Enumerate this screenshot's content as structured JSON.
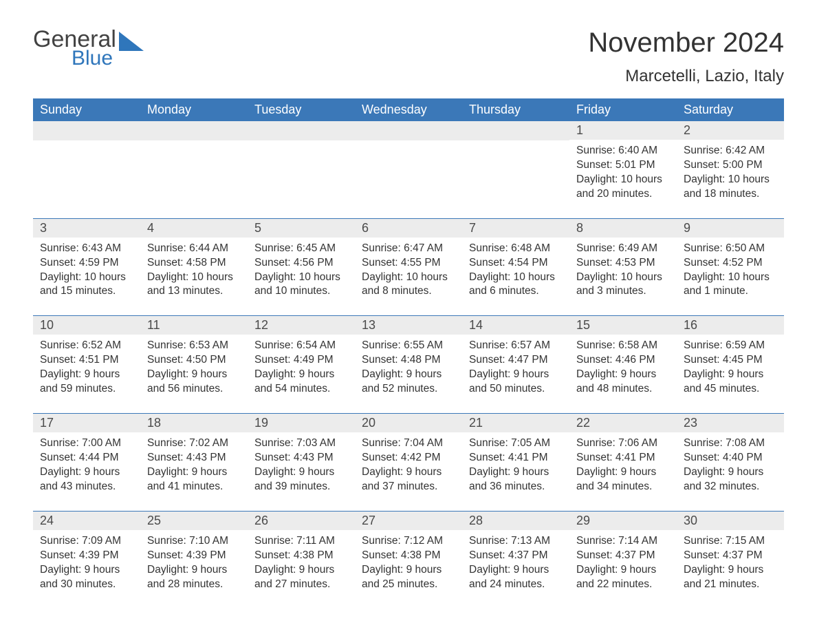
{
  "brand": {
    "word1": "General",
    "word2": "Blue",
    "accent_color": "#2f76bb",
    "text_color": "#424242"
  },
  "title": "November 2024",
  "location": "Marcetelli, Lazio, Italy",
  "colors": {
    "header_bg": "#3b78b8",
    "header_text": "#ffffff",
    "daynum_bg": "#ececec",
    "daynum_text": "#4a4a4a",
    "body_text": "#333333",
    "rule": "#3b78b8",
    "page_bg": "#ffffff"
  },
  "typography": {
    "title_fontsize": 40,
    "location_fontsize": 24,
    "weekday_fontsize": 18,
    "daynum_fontsize": 18,
    "body_fontsize": 15.5
  },
  "weekdays": [
    "Sunday",
    "Monday",
    "Tuesday",
    "Wednesday",
    "Thursday",
    "Friday",
    "Saturday"
  ],
  "weeks": [
    [
      null,
      null,
      null,
      null,
      null,
      {
        "n": "1",
        "sunrise": "6:40 AM",
        "sunset": "5:01 PM",
        "daylight": "10 hours and 20 minutes."
      },
      {
        "n": "2",
        "sunrise": "6:42 AM",
        "sunset": "5:00 PM",
        "daylight": "10 hours and 18 minutes."
      }
    ],
    [
      {
        "n": "3",
        "sunrise": "6:43 AM",
        "sunset": "4:59 PM",
        "daylight": "10 hours and 15 minutes."
      },
      {
        "n": "4",
        "sunrise": "6:44 AM",
        "sunset": "4:58 PM",
        "daylight": "10 hours and 13 minutes."
      },
      {
        "n": "5",
        "sunrise": "6:45 AM",
        "sunset": "4:56 PM",
        "daylight": "10 hours and 10 minutes."
      },
      {
        "n": "6",
        "sunrise": "6:47 AM",
        "sunset": "4:55 PM",
        "daylight": "10 hours and 8 minutes."
      },
      {
        "n": "7",
        "sunrise": "6:48 AM",
        "sunset": "4:54 PM",
        "daylight": "10 hours and 6 minutes."
      },
      {
        "n": "8",
        "sunrise": "6:49 AM",
        "sunset": "4:53 PM",
        "daylight": "10 hours and 3 minutes."
      },
      {
        "n": "9",
        "sunrise": "6:50 AM",
        "sunset": "4:52 PM",
        "daylight": "10 hours and 1 minute."
      }
    ],
    [
      {
        "n": "10",
        "sunrise": "6:52 AM",
        "sunset": "4:51 PM",
        "daylight": "9 hours and 59 minutes."
      },
      {
        "n": "11",
        "sunrise": "6:53 AM",
        "sunset": "4:50 PM",
        "daylight": "9 hours and 56 minutes."
      },
      {
        "n": "12",
        "sunrise": "6:54 AM",
        "sunset": "4:49 PM",
        "daylight": "9 hours and 54 minutes."
      },
      {
        "n": "13",
        "sunrise": "6:55 AM",
        "sunset": "4:48 PM",
        "daylight": "9 hours and 52 minutes."
      },
      {
        "n": "14",
        "sunrise": "6:57 AM",
        "sunset": "4:47 PM",
        "daylight": "9 hours and 50 minutes."
      },
      {
        "n": "15",
        "sunrise": "6:58 AM",
        "sunset": "4:46 PM",
        "daylight": "9 hours and 48 minutes."
      },
      {
        "n": "16",
        "sunrise": "6:59 AM",
        "sunset": "4:45 PM",
        "daylight": "9 hours and 45 minutes."
      }
    ],
    [
      {
        "n": "17",
        "sunrise": "7:00 AM",
        "sunset": "4:44 PM",
        "daylight": "9 hours and 43 minutes."
      },
      {
        "n": "18",
        "sunrise": "7:02 AM",
        "sunset": "4:43 PM",
        "daylight": "9 hours and 41 minutes."
      },
      {
        "n": "19",
        "sunrise": "7:03 AM",
        "sunset": "4:43 PM",
        "daylight": "9 hours and 39 minutes."
      },
      {
        "n": "20",
        "sunrise": "7:04 AM",
        "sunset": "4:42 PM",
        "daylight": "9 hours and 37 minutes."
      },
      {
        "n": "21",
        "sunrise": "7:05 AM",
        "sunset": "4:41 PM",
        "daylight": "9 hours and 36 minutes."
      },
      {
        "n": "22",
        "sunrise": "7:06 AM",
        "sunset": "4:41 PM",
        "daylight": "9 hours and 34 minutes."
      },
      {
        "n": "23",
        "sunrise": "7:08 AM",
        "sunset": "4:40 PM",
        "daylight": "9 hours and 32 minutes."
      }
    ],
    [
      {
        "n": "24",
        "sunrise": "7:09 AM",
        "sunset": "4:39 PM",
        "daylight": "9 hours and 30 minutes."
      },
      {
        "n": "25",
        "sunrise": "7:10 AM",
        "sunset": "4:39 PM",
        "daylight": "9 hours and 28 minutes."
      },
      {
        "n": "26",
        "sunrise": "7:11 AM",
        "sunset": "4:38 PM",
        "daylight": "9 hours and 27 minutes."
      },
      {
        "n": "27",
        "sunrise": "7:12 AM",
        "sunset": "4:38 PM",
        "daylight": "9 hours and 25 minutes."
      },
      {
        "n": "28",
        "sunrise": "7:13 AM",
        "sunset": "4:37 PM",
        "daylight": "9 hours and 24 minutes."
      },
      {
        "n": "29",
        "sunrise": "7:14 AM",
        "sunset": "4:37 PM",
        "daylight": "9 hours and 22 minutes."
      },
      {
        "n": "30",
        "sunrise": "7:15 AM",
        "sunset": "4:37 PM",
        "daylight": "9 hours and 21 minutes."
      }
    ]
  ],
  "labels": {
    "sunrise": "Sunrise: ",
    "sunset": "Sunset: ",
    "daylight": "Daylight: "
  }
}
